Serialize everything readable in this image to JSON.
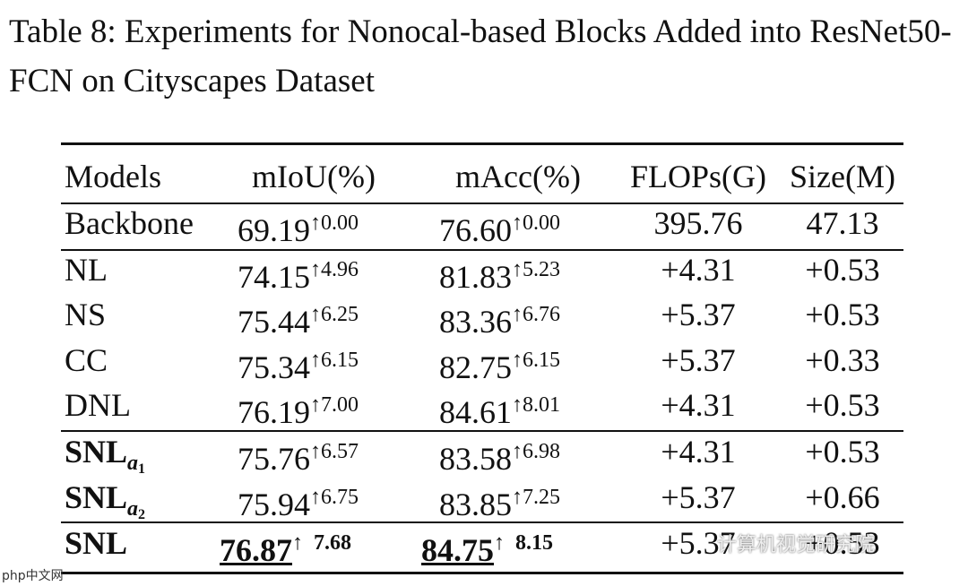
{
  "title": "Table 8: Experiments for Nonocal-based Blocks Added into ResNet50-FCN on Cityscapes Dataset",
  "table": {
    "header": [
      "Models",
      "mIoU(%)",
      "mAcc(%)",
      "FLOPs(G)",
      "Size(M)"
    ],
    "rows": [
      {
        "model": {
          "name": "Backbone"
        },
        "miou": {
          "value": "69.19",
          "delta": "↑0.00"
        },
        "macc": {
          "value": "76.60",
          "delta": "↑0.00"
        },
        "flops": "395.76",
        "size": "47.13"
      },
      {
        "model": {
          "name": "NL"
        },
        "miou": {
          "value": "74.15",
          "delta": "↑4.96"
        },
        "macc": {
          "value": "81.83",
          "delta": "↑5.23"
        },
        "flops": "+4.31",
        "size": "+0.53"
      },
      {
        "model": {
          "name": "NS"
        },
        "miou": {
          "value": "75.44",
          "delta": "↑6.25"
        },
        "macc": {
          "value": "83.36",
          "delta": "↑6.76"
        },
        "flops": "+5.37",
        "size": "+0.53"
      },
      {
        "model": {
          "name": "CC"
        },
        "miou": {
          "value": "75.34",
          "delta": "↑6.15"
        },
        "macc": {
          "value": "82.75",
          "delta": "↑6.15"
        },
        "flops": "+5.37",
        "size": "+0.33"
      },
      {
        "model": {
          "name": "DNL"
        },
        "miou": {
          "value": "76.19",
          "delta": "↑7.00"
        },
        "macc": {
          "value": "84.61",
          "delta": "↑8.01"
        },
        "flops": "+4.31",
        "size": "+0.53"
      },
      {
        "model": {
          "name": "SNL",
          "sub": "a",
          "subsub": "1"
        },
        "miou": {
          "value": "75.76",
          "delta": "↑6.57"
        },
        "macc": {
          "value": "83.58",
          "delta": "↑6.98"
        },
        "flops": "+4.31",
        "size": "+0.53"
      },
      {
        "model": {
          "name": "SNL",
          "sub": "a",
          "subsub": "2"
        },
        "miou": {
          "value": "75.94",
          "delta": "↑6.75"
        },
        "macc": {
          "value": "83.85",
          "delta": "↑7.25"
        },
        "flops": "+5.37",
        "size": "+0.66"
      },
      {
        "model": {
          "name": "SNL"
        },
        "miou": {
          "value": "76.87",
          "delta": "↑  7.68"
        },
        "macc": {
          "value": "84.75",
          "delta": "↑  8.15"
        },
        "flops": "+5.37",
        "size": "+0.53"
      }
    ]
  },
  "watermarks": [
    "计算机视觉研究院",
    "php中文网"
  ]
}
